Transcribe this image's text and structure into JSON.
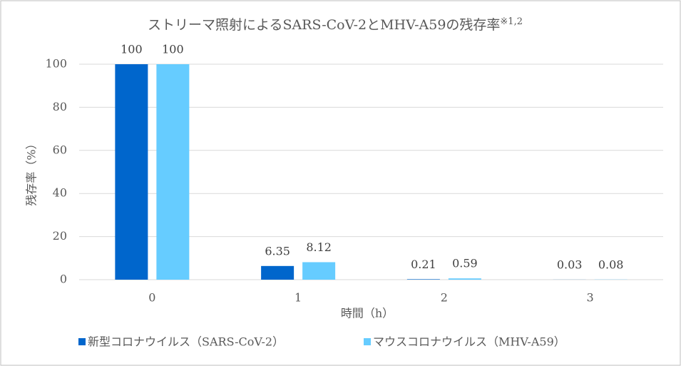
{
  "chart_data": {
    "type": "bar",
    "title": "ストリーマ照射によるSARS-CoV-2とMHV-A59の残存率",
    "title_note": "※1,2",
    "x_label": "時間（h）",
    "y_label": "残存率（%）",
    "categories": [
      "0",
      "1",
      "2",
      "3"
    ],
    "series": [
      {
        "name": "新型コロナウイルス（SARS-CoV-2）",
        "color": "#0066cc",
        "values": [
          100,
          6.35,
          0.21,
          0.03
        ]
      },
      {
        "name": "マウスコロナウイルス（MHV-A59）",
        "color": "#66ccff",
        "values": [
          100,
          8.12,
          0.59,
          0.08
        ]
      }
    ],
    "ylim": [
      0,
      100
    ],
    "yticks": [
      0,
      20,
      40,
      60,
      80,
      100
    ],
    "grid": true,
    "legend": "bottom"
  }
}
